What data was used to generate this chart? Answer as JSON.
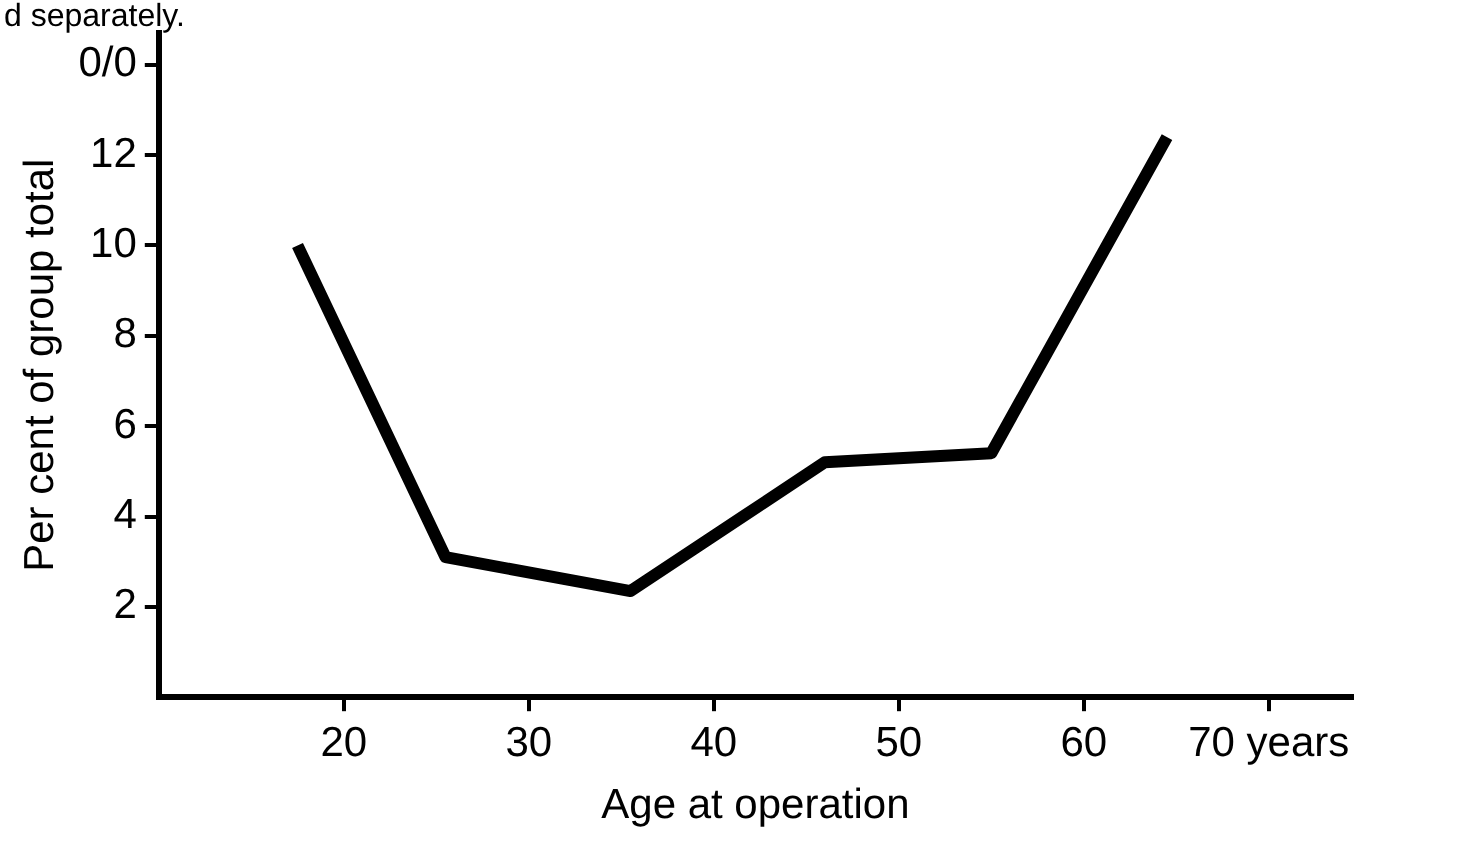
{
  "chart_data": {
    "type": "line",
    "xlabel": "Age at operation",
    "ylabel": "Per cent of group total",
    "annotations": [
      "d separately."
    ],
    "x": [
      17.5,
      25.5,
      35.5,
      46,
      55,
      64.5
    ],
    "series": [
      {
        "color": "#000000",
        "values": [
          10,
          3.1,
          2.35,
          5.2,
          5.4,
          12.4
        ]
      }
    ],
    "xlim": [
      10,
      74.5
    ],
    "xticks": [
      20,
      30,
      40,
      50,
      60,
      {
        "value": 70,
        "label": "70 years"
      }
    ],
    "ylim": [
      0,
      14.7
    ],
    "yticks": [
      2,
      4,
      6,
      8,
      10,
      12,
      {
        "value": 14,
        "label": "0/0"
      }
    ],
    "grid": false,
    "legend": false,
    "marker": "none",
    "line_style": "solid"
  }
}
